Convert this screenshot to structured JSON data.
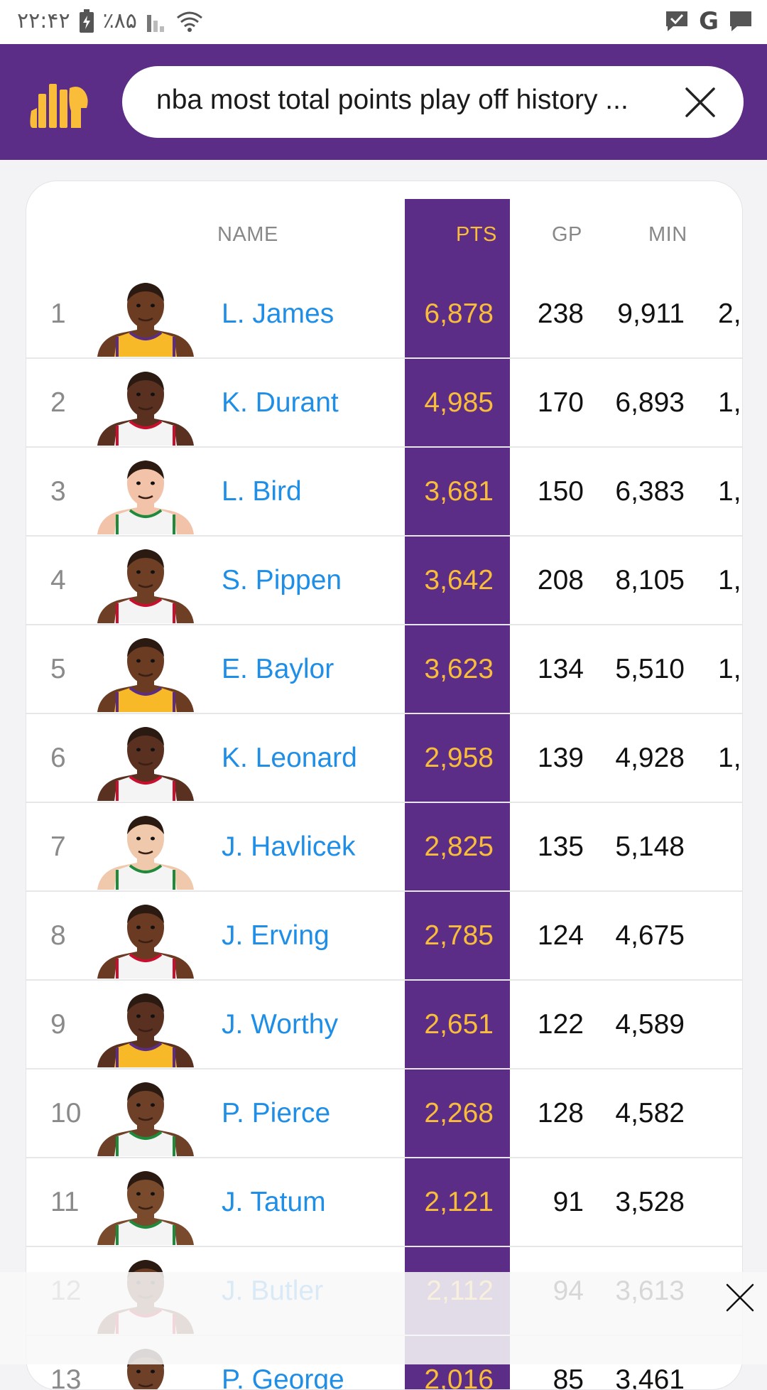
{
  "status_bar": {
    "time": "۲۲:۴۲",
    "battery": "٪۸۵",
    "icons": [
      "battery-icon",
      "signal-icon",
      "wifi-icon",
      "message-check-icon",
      "google-icon",
      "chat-icon"
    ]
  },
  "header": {
    "logo": "statmuse-logo",
    "search_query": "nba most total points play off history ...",
    "colors": {
      "brand": "#5b2d87",
      "accent": "#f9bd3a",
      "link": "#1f8ee6"
    }
  },
  "table": {
    "columns": {
      "name": "NAME",
      "pts": "PTS",
      "gp": "GP",
      "min": "MIN"
    },
    "rows": [
      {
        "rank": "1",
        "name": "L. James",
        "pts": "6,878",
        "gp": "238",
        "min": "9,911",
        "extra": "2,",
        "jersey": "gold",
        "skin": "#6b3b22"
      },
      {
        "rank": "2",
        "name": "K. Durant",
        "pts": "4,985",
        "gp": "170",
        "min": "6,893",
        "extra": "1,",
        "jersey": "white-red",
        "skin": "#5a3120"
      },
      {
        "rank": "3",
        "name": "L. Bird",
        "pts": "3,681",
        "gp": "150",
        "min": "6,383",
        "extra": "1,",
        "jersey": "white-green",
        "skin": "#f2c3a8"
      },
      {
        "rank": "4",
        "name": "S. Pippen",
        "pts": "3,642",
        "gp": "208",
        "min": "8,105",
        "extra": "1,",
        "jersey": "white-red",
        "skin": "#6e3f24"
      },
      {
        "rank": "5",
        "name": "E. Baylor",
        "pts": "3,623",
        "gp": "134",
        "min": "5,510",
        "extra": "1,",
        "jersey": "gold",
        "skin": "#6b3b22"
      },
      {
        "rank": "6",
        "name": "K. Leonard",
        "pts": "2,958",
        "gp": "139",
        "min": "4,928",
        "extra": "1,",
        "jersey": "white-red",
        "skin": "#5a3120"
      },
      {
        "rank": "7",
        "name": "J. Havlicek",
        "pts": "2,825",
        "gp": "135",
        "min": "5,148",
        "extra": "",
        "jersey": "white-green",
        "skin": "#f0c8ac"
      },
      {
        "rank": "8",
        "name": "J. Erving",
        "pts": "2,785",
        "gp": "124",
        "min": "4,675",
        "extra": "",
        "jersey": "white-red",
        "skin": "#6a3a22"
      },
      {
        "rank": "9",
        "name": "J. Worthy",
        "pts": "2,651",
        "gp": "122",
        "min": "4,589",
        "extra": "",
        "jersey": "gold",
        "skin": "#5a3120"
      },
      {
        "rank": "10",
        "name": "P. Pierce",
        "pts": "2,268",
        "gp": "128",
        "min": "4,582",
        "extra": "",
        "jersey": "white-green",
        "skin": "#6e4028"
      },
      {
        "rank": "11",
        "name": "J. Tatum",
        "pts": "2,121",
        "gp": "91",
        "min": "3,528",
        "extra": "",
        "jersey": "white-green",
        "skin": "#7a4a2c"
      },
      {
        "rank": "12",
        "name": "J. Butler",
        "pts": "2,112",
        "gp": "94",
        "min": "3,613",
        "extra": "",
        "jersey": "white-red",
        "skin": "#6b3b22"
      },
      {
        "rank": "13",
        "name": "P. George",
        "pts": "2,016",
        "gp": "85",
        "min": "3,461",
        "extra": "",
        "jersey": "white-red",
        "skin": "#6e4028"
      }
    ]
  },
  "ad_overlay": {
    "close_icon": "close-icon"
  }
}
